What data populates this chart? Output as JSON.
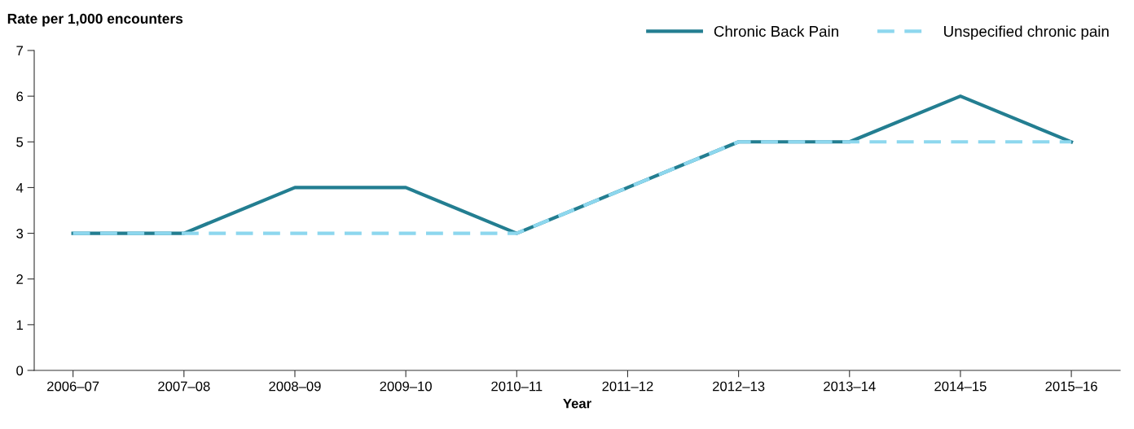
{
  "chart_data": {
    "type": "line",
    "ylabel": "Rate per 1,000 encounters",
    "xlabel": "Year",
    "categories": [
      "2006–07",
      "2007–08",
      "2008–09",
      "2009–10",
      "2010–11",
      "2011–12",
      "2012–13",
      "2013–14",
      "2014–15",
      "2015–16"
    ],
    "series": [
      {
        "name": "Chronic Back Pain",
        "color": "#237e91",
        "line_style": "solid",
        "values": [
          3,
          3,
          4,
          4,
          3,
          4,
          5,
          5,
          6,
          5
        ]
      },
      {
        "name": "Unspecified chronic pain",
        "color": "#8dd7ee",
        "line_style": "dashed",
        "values": [
          3,
          3,
          3,
          3,
          3,
          4,
          5,
          5,
          5,
          5
        ]
      }
    ],
    "ylim": [
      0,
      7
    ],
    "yticks": [
      0,
      1,
      2,
      3,
      4,
      5,
      6,
      7
    ],
    "grid": false,
    "legend": "top right",
    "marker": "none"
  }
}
